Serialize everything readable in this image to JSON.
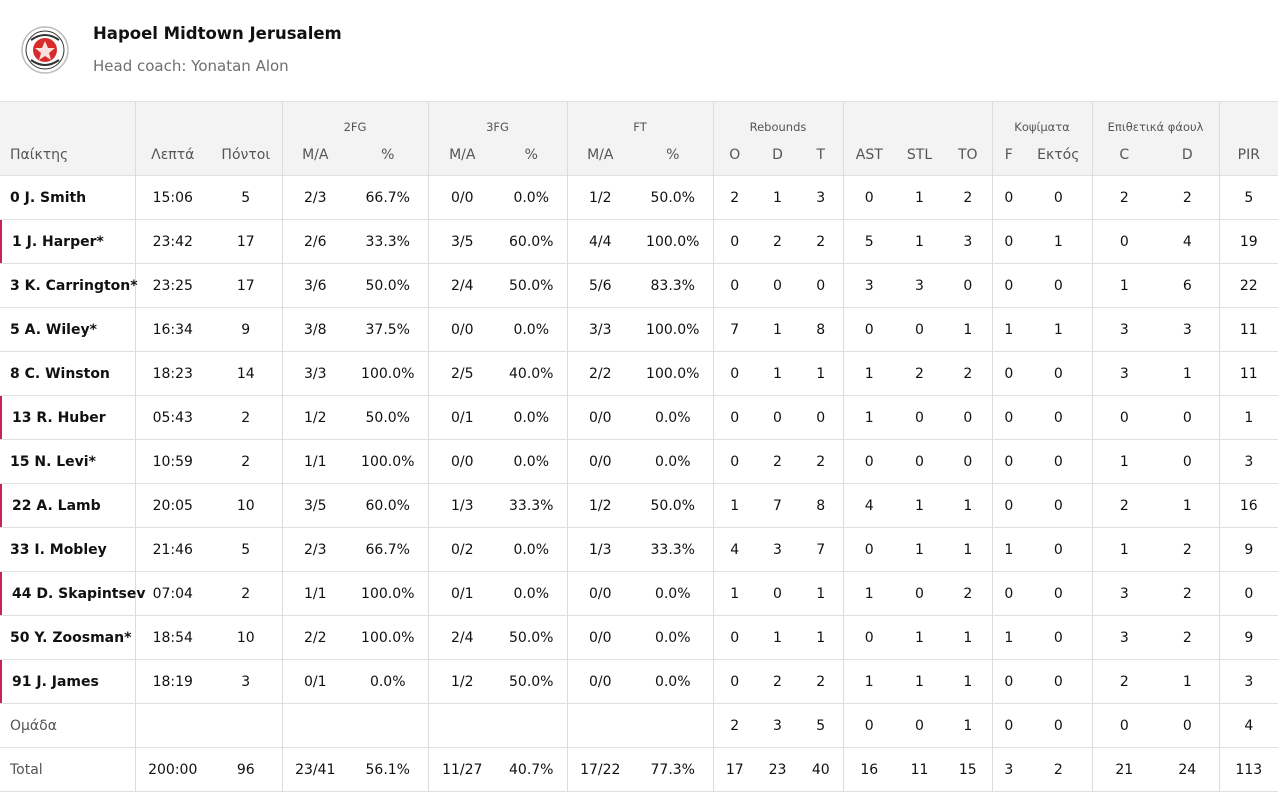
{
  "team": {
    "name": "Hapoel Midtown Jerusalem",
    "coach": "Head coach: Yonatan Alon"
  },
  "groups": {
    "fg2": "2FG",
    "fg3": "3FG",
    "ft": "FT",
    "rebounds": "Rebounds",
    "blocks": "Κοψίματα",
    "fouls": "Επιθετικά φάουλ"
  },
  "columns": {
    "player": "Παίκτης",
    "minutes": "Λεπτά",
    "points": "Πόντοι",
    "fg2_ma": "M/A",
    "fg2_pct": "%",
    "fg3_ma": "M/A",
    "fg3_pct": "%",
    "ft_ma": "M/A",
    "ft_pct": "%",
    "reb_o": "O",
    "reb_d": "D",
    "reb_t": "T",
    "ast": "AST",
    "stl": "STL",
    "to": "TO",
    "blk_f": "F",
    "blk_a": "Εκτός",
    "foul_c": "C",
    "foul_d": "D",
    "pir": "PIR"
  },
  "players": [
    {
      "name": "0 J. Smith",
      "marked": false,
      "min": "15:06",
      "pts": "5",
      "fg2": "2/3",
      "fg2p": "66.7%",
      "fg3": "0/0",
      "fg3p": "0.0%",
      "ft": "1/2",
      "ftp": "50.0%",
      "o": "2",
      "d": "1",
      "t": "3",
      "ast": "0",
      "stl": "1",
      "to": "2",
      "bf": "0",
      "ba": "0",
      "fc": "2",
      "fd": "2",
      "pir": "5"
    },
    {
      "name": "1 J. Harper*",
      "marked": true,
      "min": "23:42",
      "pts": "17",
      "fg2": "2/6",
      "fg2p": "33.3%",
      "fg3": "3/5",
      "fg3p": "60.0%",
      "ft": "4/4",
      "ftp": "100.0%",
      "o": "0",
      "d": "2",
      "t": "2",
      "ast": "5",
      "stl": "1",
      "to": "3",
      "bf": "0",
      "ba": "1",
      "fc": "0",
      "fd": "4",
      "pir": "19"
    },
    {
      "name": "3 K. Carrington*",
      "marked": false,
      "min": "23:25",
      "pts": "17",
      "fg2": "3/6",
      "fg2p": "50.0%",
      "fg3": "2/4",
      "fg3p": "50.0%",
      "ft": "5/6",
      "ftp": "83.3%",
      "o": "0",
      "d": "0",
      "t": "0",
      "ast": "3",
      "stl": "3",
      "to": "0",
      "bf": "0",
      "ba": "0",
      "fc": "1",
      "fd": "6",
      "pir": "22"
    },
    {
      "name": "5 A. Wiley*",
      "marked": false,
      "min": "16:34",
      "pts": "9",
      "fg2": "3/8",
      "fg2p": "37.5%",
      "fg3": "0/0",
      "fg3p": "0.0%",
      "ft": "3/3",
      "ftp": "100.0%",
      "o": "7",
      "d": "1",
      "t": "8",
      "ast": "0",
      "stl": "0",
      "to": "1",
      "bf": "1",
      "ba": "1",
      "fc": "3",
      "fd": "3",
      "pir": "11"
    },
    {
      "name": "8 C. Winston",
      "marked": false,
      "min": "18:23",
      "pts": "14",
      "fg2": "3/3",
      "fg2p": "100.0%",
      "fg3": "2/5",
      "fg3p": "40.0%",
      "ft": "2/2",
      "ftp": "100.0%",
      "o": "0",
      "d": "1",
      "t": "1",
      "ast": "1",
      "stl": "2",
      "to": "2",
      "bf": "0",
      "ba": "0",
      "fc": "3",
      "fd": "1",
      "pir": "11"
    },
    {
      "name": "13 R. Huber",
      "marked": true,
      "min": "05:43",
      "pts": "2",
      "fg2": "1/2",
      "fg2p": "50.0%",
      "fg3": "0/1",
      "fg3p": "0.0%",
      "ft": "0/0",
      "ftp": "0.0%",
      "o": "0",
      "d": "0",
      "t": "0",
      "ast": "1",
      "stl": "0",
      "to": "0",
      "bf": "0",
      "ba": "0",
      "fc": "0",
      "fd": "0",
      "pir": "1"
    },
    {
      "name": "15 N. Levi*",
      "marked": false,
      "min": "10:59",
      "pts": "2",
      "fg2": "1/1",
      "fg2p": "100.0%",
      "fg3": "0/0",
      "fg3p": "0.0%",
      "ft": "0/0",
      "ftp": "0.0%",
      "o": "0",
      "d": "2",
      "t": "2",
      "ast": "0",
      "stl": "0",
      "to": "0",
      "bf": "0",
      "ba": "0",
      "fc": "1",
      "fd": "0",
      "pir": "3"
    },
    {
      "name": "22 A. Lamb",
      "marked": true,
      "min": "20:05",
      "pts": "10",
      "fg2": "3/5",
      "fg2p": "60.0%",
      "fg3": "1/3",
      "fg3p": "33.3%",
      "ft": "1/2",
      "ftp": "50.0%",
      "o": "1",
      "d": "7",
      "t": "8",
      "ast": "4",
      "stl": "1",
      "to": "1",
      "bf": "0",
      "ba": "0",
      "fc": "2",
      "fd": "1",
      "pir": "16"
    },
    {
      "name": "33 I. Mobley",
      "marked": false,
      "min": "21:46",
      "pts": "5",
      "fg2": "2/3",
      "fg2p": "66.7%",
      "fg3": "0/2",
      "fg3p": "0.0%",
      "ft": "1/3",
      "ftp": "33.3%",
      "o": "4",
      "d": "3",
      "t": "7",
      "ast": "0",
      "stl": "1",
      "to": "1",
      "bf": "1",
      "ba": "0",
      "fc": "1",
      "fd": "2",
      "pir": "9"
    },
    {
      "name": "44 D. Skapintsev",
      "marked": true,
      "min": "07:04",
      "pts": "2",
      "fg2": "1/1",
      "fg2p": "100.0%",
      "fg3": "0/1",
      "fg3p": "0.0%",
      "ft": "0/0",
      "ftp": "0.0%",
      "o": "1",
      "d": "0",
      "t": "1",
      "ast": "1",
      "stl": "0",
      "to": "2",
      "bf": "0",
      "ba": "0",
      "fc": "3",
      "fd": "2",
      "pir": "0"
    },
    {
      "name": "50 Y. Zoosman*",
      "marked": false,
      "min": "18:54",
      "pts": "10",
      "fg2": "2/2",
      "fg2p": "100.0%",
      "fg3": "2/4",
      "fg3p": "50.0%",
      "ft": "0/0",
      "ftp": "0.0%",
      "o": "0",
      "d": "1",
      "t": "1",
      "ast": "0",
      "stl": "1",
      "to": "1",
      "bf": "1",
      "ba": "0",
      "fc": "3",
      "fd": "2",
      "pir": "9"
    },
    {
      "name": "91 J. James",
      "marked": true,
      "min": "18:19",
      "pts": "3",
      "fg2": "0/1",
      "fg2p": "0.0%",
      "fg3": "1/2",
      "fg3p": "50.0%",
      "ft": "0/0",
      "ftp": "0.0%",
      "o": "0",
      "d": "2",
      "t": "2",
      "ast": "1",
      "stl": "1",
      "to": "1",
      "bf": "0",
      "ba": "0",
      "fc": "2",
      "fd": "1",
      "pir": "3"
    }
  ],
  "team_row": {
    "label": "Ομάδα",
    "o": "2",
    "d": "3",
    "t": "5",
    "ast": "0",
    "stl": "0",
    "to": "1",
    "bf": "0",
    "ba": "0",
    "fc": "0",
    "fd": "0",
    "pir": "4"
  },
  "total_row": {
    "label": "Total",
    "min": "200:00",
    "pts": "96",
    "fg2": "23/41",
    "fg2p": "56.1%",
    "fg3": "11/27",
    "fg3p": "40.7%",
    "ft": "17/22",
    "ftp": "77.3%",
    "o": "17",
    "d": "23",
    "t": "40",
    "ast": "16",
    "stl": "11",
    "to": "15",
    "bf": "3",
    "ba": "2",
    "fc": "21",
    "fd": "24",
    "pir": "113"
  },
  "colors": {
    "accent": "#c8235a",
    "header_bg": "#f3f3f3",
    "logo_red": "#d92b2b"
  },
  "icons": {
    "logo": "team-crest-icon"
  }
}
